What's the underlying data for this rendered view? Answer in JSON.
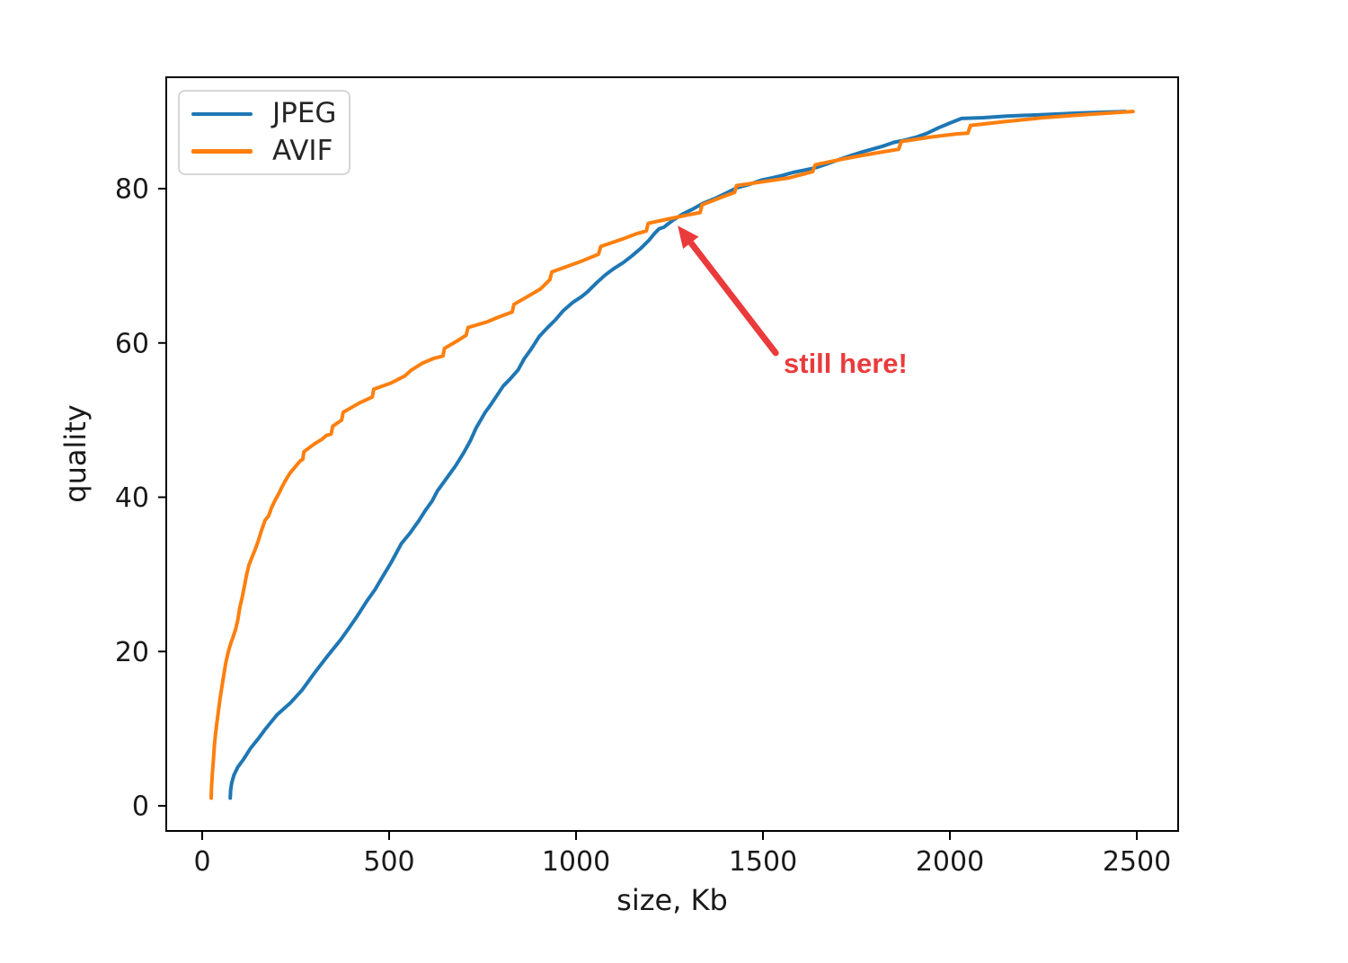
{
  "window": {
    "background": "#ffffff"
  },
  "legend": {
    "items": [
      {
        "label": "JPEG",
        "color": "#1f77b4"
      },
      {
        "label": "AVIF",
        "color": "#ff7f0e"
      }
    ]
  },
  "chart_data": {
    "type": "line",
    "title": "",
    "xlabel": "size, Kb",
    "ylabel": "quality",
    "x_ticks": [
      0,
      500,
      1000,
      1500,
      2000,
      2500
    ],
    "y_ticks": [
      0,
      20,
      40,
      60,
      80
    ],
    "xlim": [
      -100,
      2610
    ],
    "ylim": [
      -3.5,
      94.5
    ],
    "grid": false,
    "legend_position": "upper left",
    "series": [
      {
        "name": "JPEG",
        "color": "#1f77b4",
        "points": [
          [
            75,
            1
          ],
          [
            76,
            2
          ],
          [
            79,
            3
          ],
          [
            85,
            4
          ],
          [
            95,
            5
          ],
          [
            110,
            6
          ],
          [
            130,
            7.5
          ],
          [
            150,
            8.7
          ],
          [
            170,
            10
          ],
          [
            200,
            11.8
          ],
          [
            235,
            13.3
          ],
          [
            267,
            15
          ],
          [
            300,
            17.2
          ],
          [
            335,
            19.4
          ],
          [
            370,
            21.5
          ],
          [
            392,
            23
          ],
          [
            415,
            24.6
          ],
          [
            440,
            26.5
          ],
          [
            462,
            28
          ],
          [
            480,
            29.5
          ],
          [
            505,
            31.5
          ],
          [
            533,
            34
          ],
          [
            555,
            35.3
          ],
          [
            580,
            37
          ],
          [
            597,
            38.3
          ],
          [
            615,
            39.5
          ],
          [
            629,
            40.8
          ],
          [
            650,
            42.2
          ],
          [
            677,
            44
          ],
          [
            700,
            45.8
          ],
          [
            718,
            47.4
          ],
          [
            733,
            49
          ],
          [
            745,
            50
          ],
          [
            757,
            51
          ],
          [
            772,
            52
          ],
          [
            790,
            53.3
          ],
          [
            805,
            54.4
          ],
          [
            825,
            55.4
          ],
          [
            845,
            56.5
          ],
          [
            862,
            58
          ],
          [
            880,
            59.2
          ],
          [
            901,
            60.8
          ],
          [
            920,
            61.8
          ],
          [
            945,
            63
          ],
          [
            966,
            64.2
          ],
          [
            990,
            65.2
          ],
          [
            1015,
            66
          ],
          [
            1030,
            66.6
          ],
          [
            1055,
            67.8
          ],
          [
            1078,
            68.8
          ],
          [
            1100,
            69.6
          ],
          [
            1126,
            70.4
          ],
          [
            1150,
            71.3
          ],
          [
            1174,
            72.3
          ],
          [
            1195,
            73.3
          ],
          [
            1210,
            74.2
          ],
          [
            1222,
            74.8
          ],
          [
            1235,
            75
          ],
          [
            1248,
            75.5
          ],
          [
            1262,
            76
          ],
          [
            1285,
            76.7
          ],
          [
            1310,
            77.3
          ],
          [
            1340,
            78.1
          ],
          [
            1375,
            78.8
          ],
          [
            1405,
            79.5
          ],
          [
            1430,
            80.1
          ],
          [
            1460,
            80.5
          ],
          [
            1495,
            81.1
          ],
          [
            1525,
            81.4
          ],
          [
            1551,
            81.7
          ],
          [
            1580,
            82.1
          ],
          [
            1610,
            82.4
          ],
          [
            1640,
            82.7
          ],
          [
            1671,
            83.2
          ],
          [
            1705,
            83.8
          ],
          [
            1735,
            84.3
          ],
          [
            1762,
            84.7
          ],
          [
            1791,
            85.1
          ],
          [
            1820,
            85.5
          ],
          [
            1850,
            86
          ],
          [
            1880,
            86.3
          ],
          [
            1911,
            86.7
          ],
          [
            1940,
            87.2
          ],
          [
            1970,
            87.9
          ],
          [
            2000,
            88.5
          ],
          [
            2031,
            89.1
          ],
          [
            2090,
            89.2
          ],
          [
            2152,
            89.4
          ],
          [
            2250,
            89.6
          ],
          [
            2350,
            89.8
          ],
          [
            2470,
            90
          ]
        ]
      },
      {
        "name": "AVIF",
        "color": "#ff7f0e",
        "points": [
          [
            24,
            1
          ],
          [
            25,
            2.5
          ],
          [
            27,
            4
          ],
          [
            30,
            6
          ],
          [
            33,
            8
          ],
          [
            36,
            9.5
          ],
          [
            40,
            11
          ],
          [
            44,
            12.5
          ],
          [
            48,
            14
          ],
          [
            53,
            15.5
          ],
          [
            58,
            17
          ],
          [
            63,
            18.5
          ],
          [
            70,
            20
          ],
          [
            76,
            21
          ],
          [
            82,
            21.8
          ],
          [
            89,
            22.8
          ],
          [
            95,
            24
          ],
          [
            101,
            25.8
          ],
          [
            107,
            27
          ],
          [
            113,
            28.5
          ],
          [
            119,
            30
          ],
          [
            125,
            31.2
          ],
          [
            133,
            32.2
          ],
          [
            140,
            33
          ],
          [
            149,
            34.2
          ],
          [
            158,
            35.6
          ],
          [
            168,
            37
          ],
          [
            178,
            37.6
          ],
          [
            185,
            38.6
          ],
          [
            195,
            39.6
          ],
          [
            204,
            40.4
          ],
          [
            212,
            41.2
          ],
          [
            221,
            42
          ],
          [
            228,
            42.6
          ],
          [
            236,
            43.2
          ],
          [
            250,
            44
          ],
          [
            262,
            44.7
          ],
          [
            269,
            44.9
          ],
          [
            272,
            45.9
          ],
          [
            300,
            46.9
          ],
          [
            320,
            47.5
          ],
          [
            332,
            48
          ],
          [
            345,
            48.2
          ],
          [
            349,
            49.2
          ],
          [
            373,
            50
          ],
          [
            377,
            51
          ],
          [
            420,
            52.2
          ],
          [
            455,
            53
          ],
          [
            459,
            54
          ],
          [
            505,
            54.8
          ],
          [
            541,
            55.7
          ],
          [
            560,
            56.5
          ],
          [
            590,
            57.4
          ],
          [
            620,
            58
          ],
          [
            644,
            58.3
          ],
          [
            648,
            59.3
          ],
          [
            680,
            60.2
          ],
          [
            706,
            61
          ],
          [
            711,
            62
          ],
          [
            760,
            62.7
          ],
          [
            795,
            63.4
          ],
          [
            829,
            64
          ],
          [
            834,
            65
          ],
          [
            870,
            66
          ],
          [
            905,
            67
          ],
          [
            930,
            68.2
          ],
          [
            935,
            69.2
          ],
          [
            975,
            69.9
          ],
          [
            1015,
            70.6
          ],
          [
            1060,
            71.5
          ],
          [
            1066,
            72.5
          ],
          [
            1120,
            73.4
          ],
          [
            1165,
            74.2
          ],
          [
            1188,
            74.5
          ],
          [
            1193,
            75.5
          ],
          [
            1250,
            76.1
          ],
          [
            1300,
            76.6
          ],
          [
            1332,
            76.9
          ],
          [
            1337,
            77.9
          ],
          [
            1395,
            79
          ],
          [
            1424,
            79.5
          ],
          [
            1429,
            80.4
          ],
          [
            1500,
            80.9
          ],
          [
            1570,
            81.4
          ],
          [
            1633,
            82.2
          ],
          [
            1640,
            83.1
          ],
          [
            1720,
            83.9
          ],
          [
            1800,
            84.6
          ],
          [
            1863,
            85.1
          ],
          [
            1870,
            86.1
          ],
          [
            1950,
            86.7
          ],
          [
            2020,
            87.1
          ],
          [
            2048,
            87.2
          ],
          [
            2055,
            88.2
          ],
          [
            2150,
            88.7
          ],
          [
            2250,
            89.2
          ],
          [
            2360,
            89.6
          ],
          [
            2490,
            90
          ]
        ]
      }
    ],
    "annotations": [
      {
        "text": "still here!",
        "color": "#ea3b3c",
        "xy": [
          1272,
          75.2
        ],
        "xytext": [
          1534,
          58.7
        ]
      }
    ]
  }
}
